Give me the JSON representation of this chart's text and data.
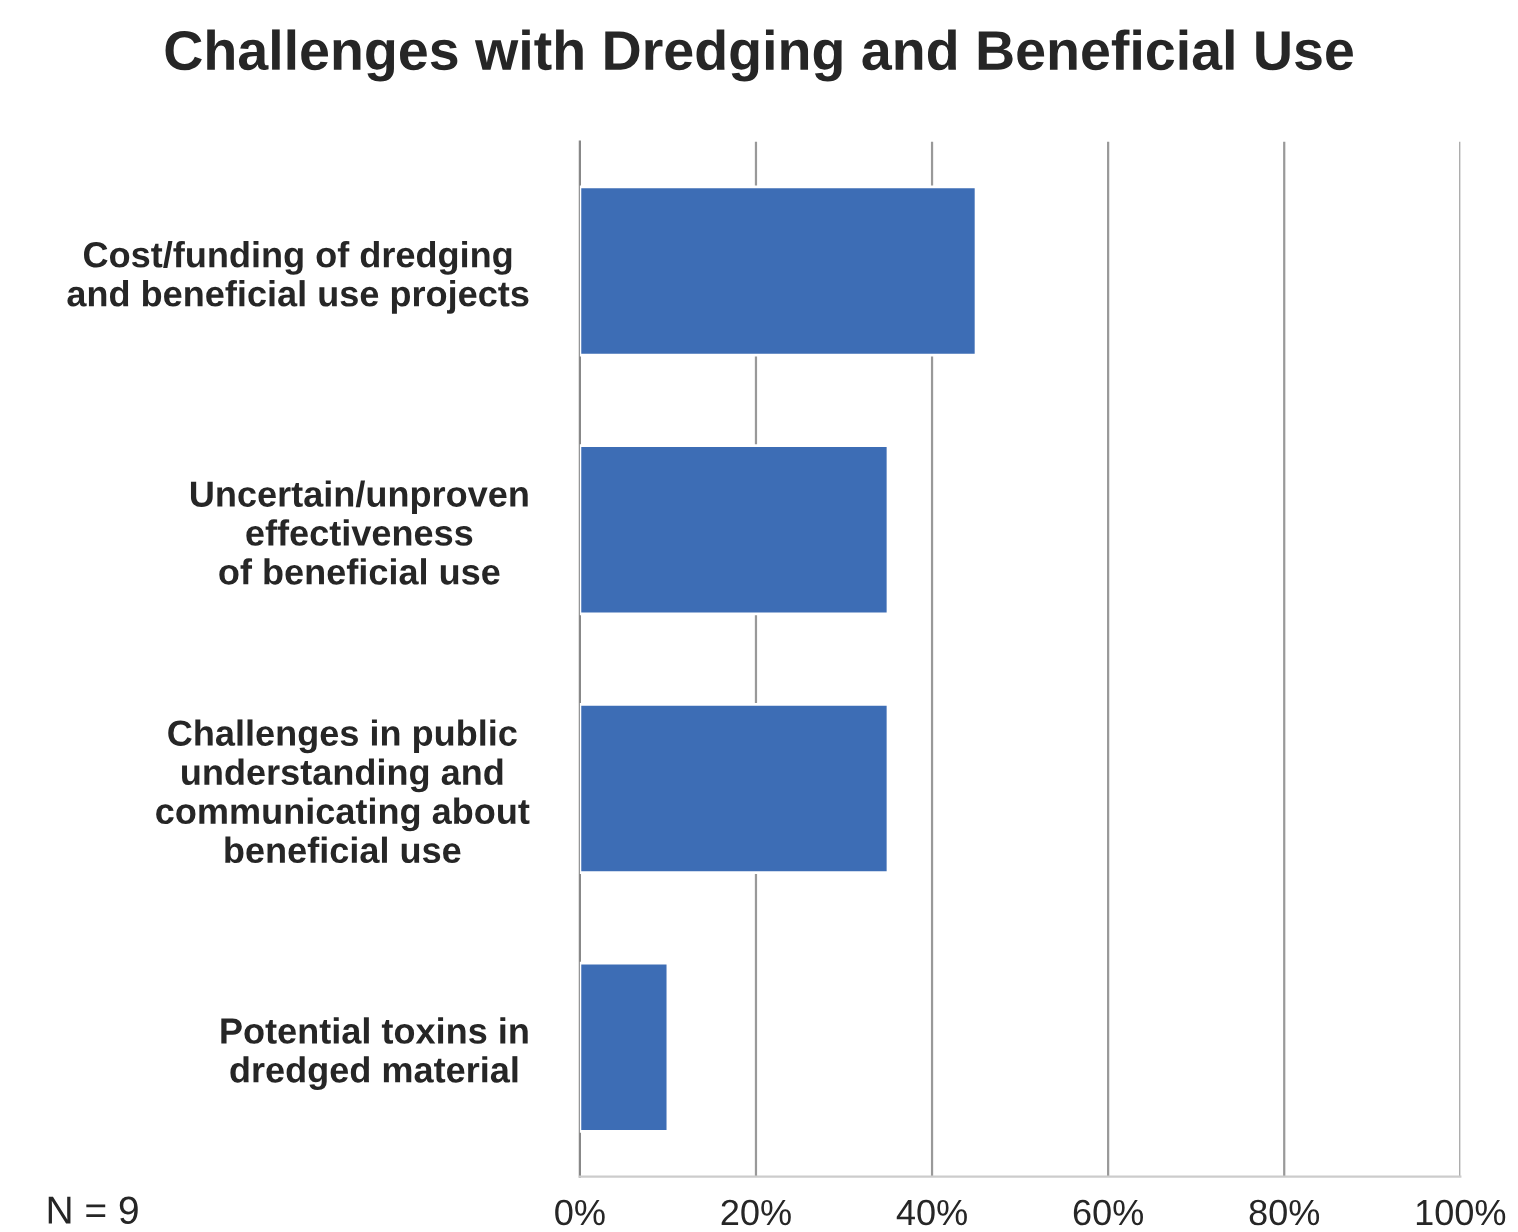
{
  "chart_data": {
    "type": "bar",
    "orientation": "horizontal",
    "title": "Challenges with Dredging and Beneficial Use",
    "categories": [
      "Cost/funding of dredging\nand beneficial use projects",
      "Uncertain/unproven\neffectiveness\nof beneficial use",
      "Challenges in public\nunderstanding and\ncommunicating about\nbeneficial use",
      "Potential toxins in\ndredged material"
    ],
    "values": [
      45,
      35,
      35,
      10
    ],
    "color": "#3d6db5",
    "xlim": [
      0,
      100
    ],
    "xticks": [
      {
        "value": 0,
        "label": "0%"
      },
      {
        "value": 20,
        "label": "20%"
      },
      {
        "value": 40,
        "label": "40%"
      },
      {
        "value": 60,
        "label": "60%"
      },
      {
        "value": 80,
        "label": "80%"
      },
      {
        "value": 100,
        "label": "100%"
      }
    ],
    "grid": "x",
    "annotations": [
      "N = 9"
    ]
  }
}
